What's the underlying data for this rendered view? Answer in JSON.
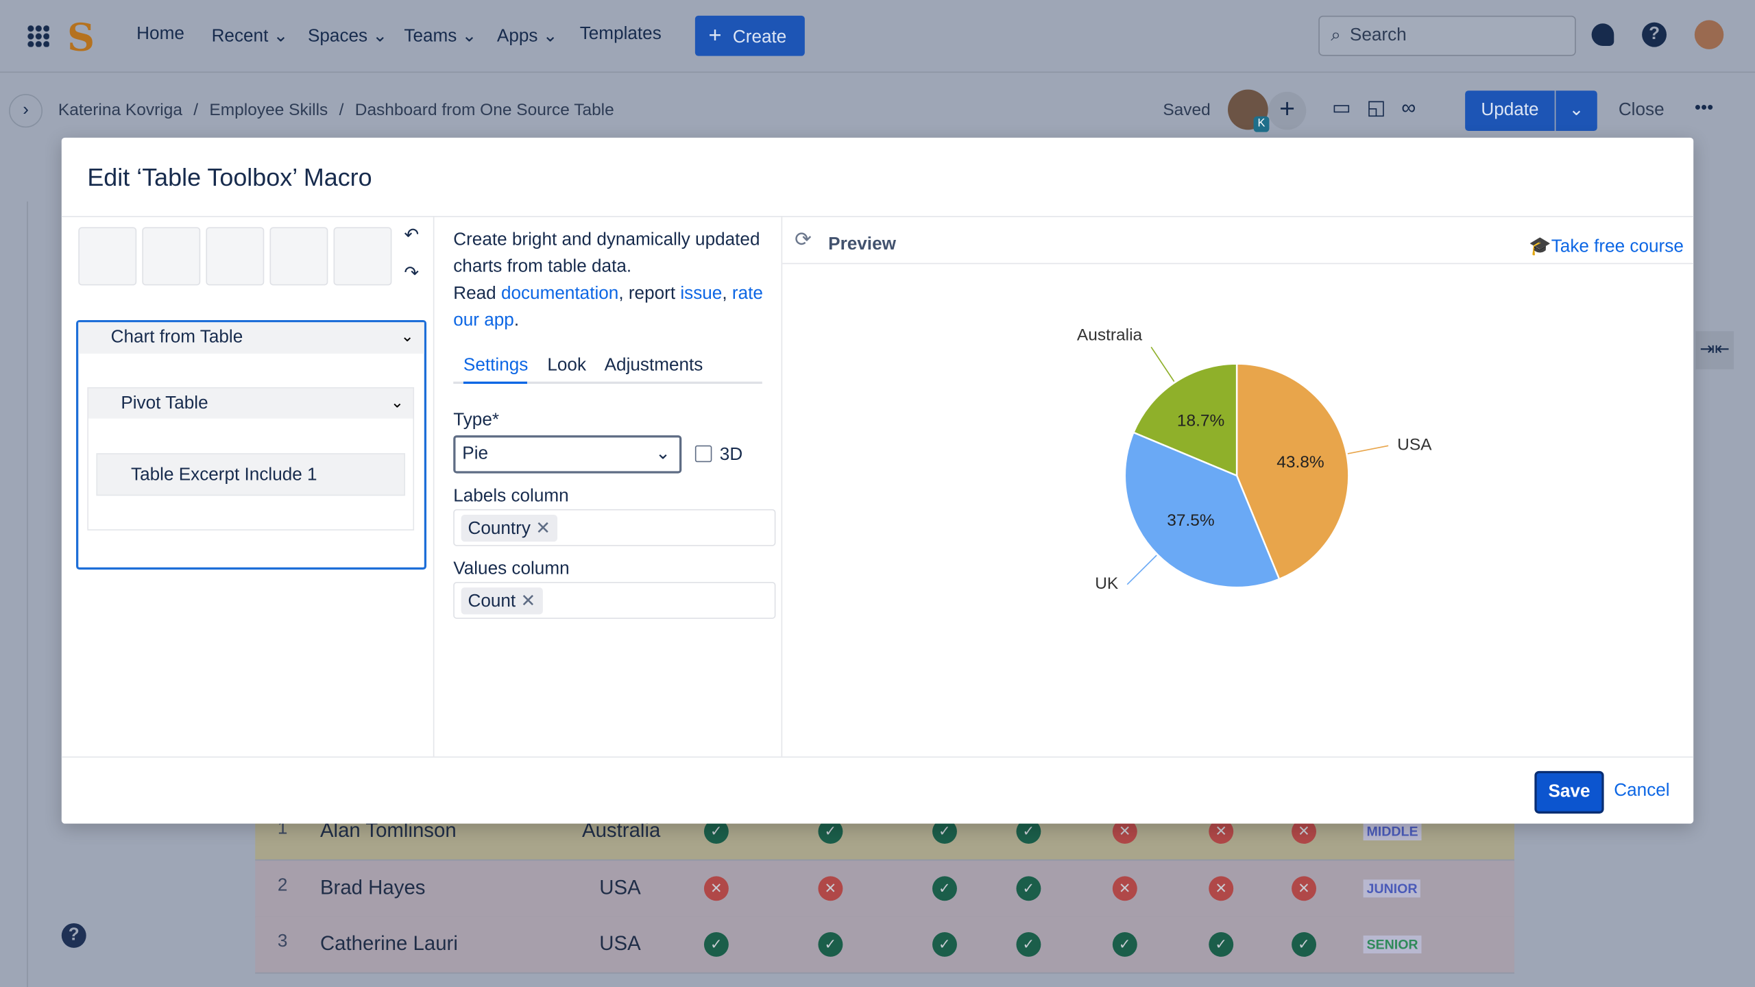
{
  "nav": {
    "items": [
      "Home",
      "Recent",
      "Spaces",
      "Teams",
      "Apps",
      "Templates"
    ],
    "create": "Create",
    "search": "Search"
  },
  "breadcrumb": [
    "Katerina Kovriga",
    "Employee Skills",
    "Dashboard from One Source Table"
  ],
  "toolbar": {
    "saved": "Saved",
    "avatar_badge": "K",
    "update": "Update",
    "close": "Close"
  },
  "dialog": {
    "title": "Edit ‘Table Toolbox’ Macro",
    "macros": [
      "Chart from Table",
      "Pivot Table",
      "Table Excerpt Include 1"
    ],
    "description": {
      "intro": "Create bright and dynamically updated charts from table data.",
      "read": "Read",
      "documentation": "documentation",
      "report": ", report",
      "issue": "issue",
      "comma": ",",
      "rate": "rate our app",
      "end": "."
    },
    "tabs": [
      "Settings",
      "Look",
      "Adjustments"
    ],
    "type_label": "Type*",
    "type_value": "Pie",
    "three_d": "3D",
    "labels_column": "Labels column",
    "labels_value": "Country",
    "values_column": "Values column",
    "values_value": "Count",
    "preview": "Preview",
    "course": "Take free course",
    "save": "Save",
    "cancel": "Cancel"
  },
  "chart_data": {
    "type": "pie",
    "categories": [
      "USA",
      "UK",
      "Australia"
    ],
    "values": [
      43.8,
      37.5,
      18.7
    ],
    "value_labels": [
      "43.8%",
      "37.5%",
      "18.7%"
    ],
    "colors": [
      "#e8a54b",
      "#6aa9f5",
      "#8fb02a"
    ]
  },
  "table": {
    "rows": [
      [
        "1",
        "Alan Tomlinson",
        "Australia",
        "MIDDLE"
      ],
      [
        "2",
        "Brad Hayes",
        "USA",
        "JUNIOR"
      ],
      [
        "3",
        "Catherine Lauri",
        "USA",
        "SENIOR"
      ]
    ],
    "checks": [
      [
        true,
        true,
        true,
        true,
        false,
        false,
        false
      ],
      [
        false,
        false,
        true,
        true,
        false,
        false,
        false
      ],
      [
        true,
        true,
        true,
        true,
        true,
        true,
        true
      ]
    ]
  }
}
